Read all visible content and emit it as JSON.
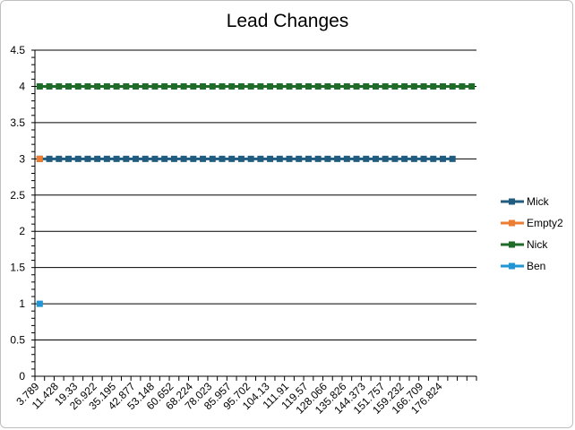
{
  "chart_data": {
    "type": "line",
    "title": "Lead Changes",
    "xlabel": "",
    "ylabel": "",
    "ylim": [
      0,
      4.5
    ],
    "ytick_step": 0.5,
    "grid": "horizontal",
    "legend_position": "right",
    "x_tick_labels": [
      "3.789",
      "11.428",
      "19.33",
      "26.922",
      "35.195",
      "42.877",
      "53.148",
      "60.652",
      "68.224",
      "78.023",
      "85.957",
      "95.702",
      "104.13",
      "111.91",
      "119.57",
      "128.066",
      "135.826",
      "144.373",
      "151.757",
      "159.232",
      "166.709",
      "176.824"
    ],
    "x_category_count": 46,
    "series": [
      {
        "name": "Mick",
        "color": "#1f5c7f",
        "value": 3,
        "start_index": 0,
        "end_index": 43
      },
      {
        "name": "Empty2",
        "color": "#ed7d31",
        "value": 3,
        "start_index": 0,
        "end_index": 0
      },
      {
        "name": "Nick",
        "color": "#1e6b2a",
        "value": 4,
        "start_index": 0,
        "end_index": 45
      },
      {
        "name": "Ben",
        "color": "#2196d4",
        "value": 1,
        "start_index": 0,
        "end_index": 0
      }
    ]
  }
}
